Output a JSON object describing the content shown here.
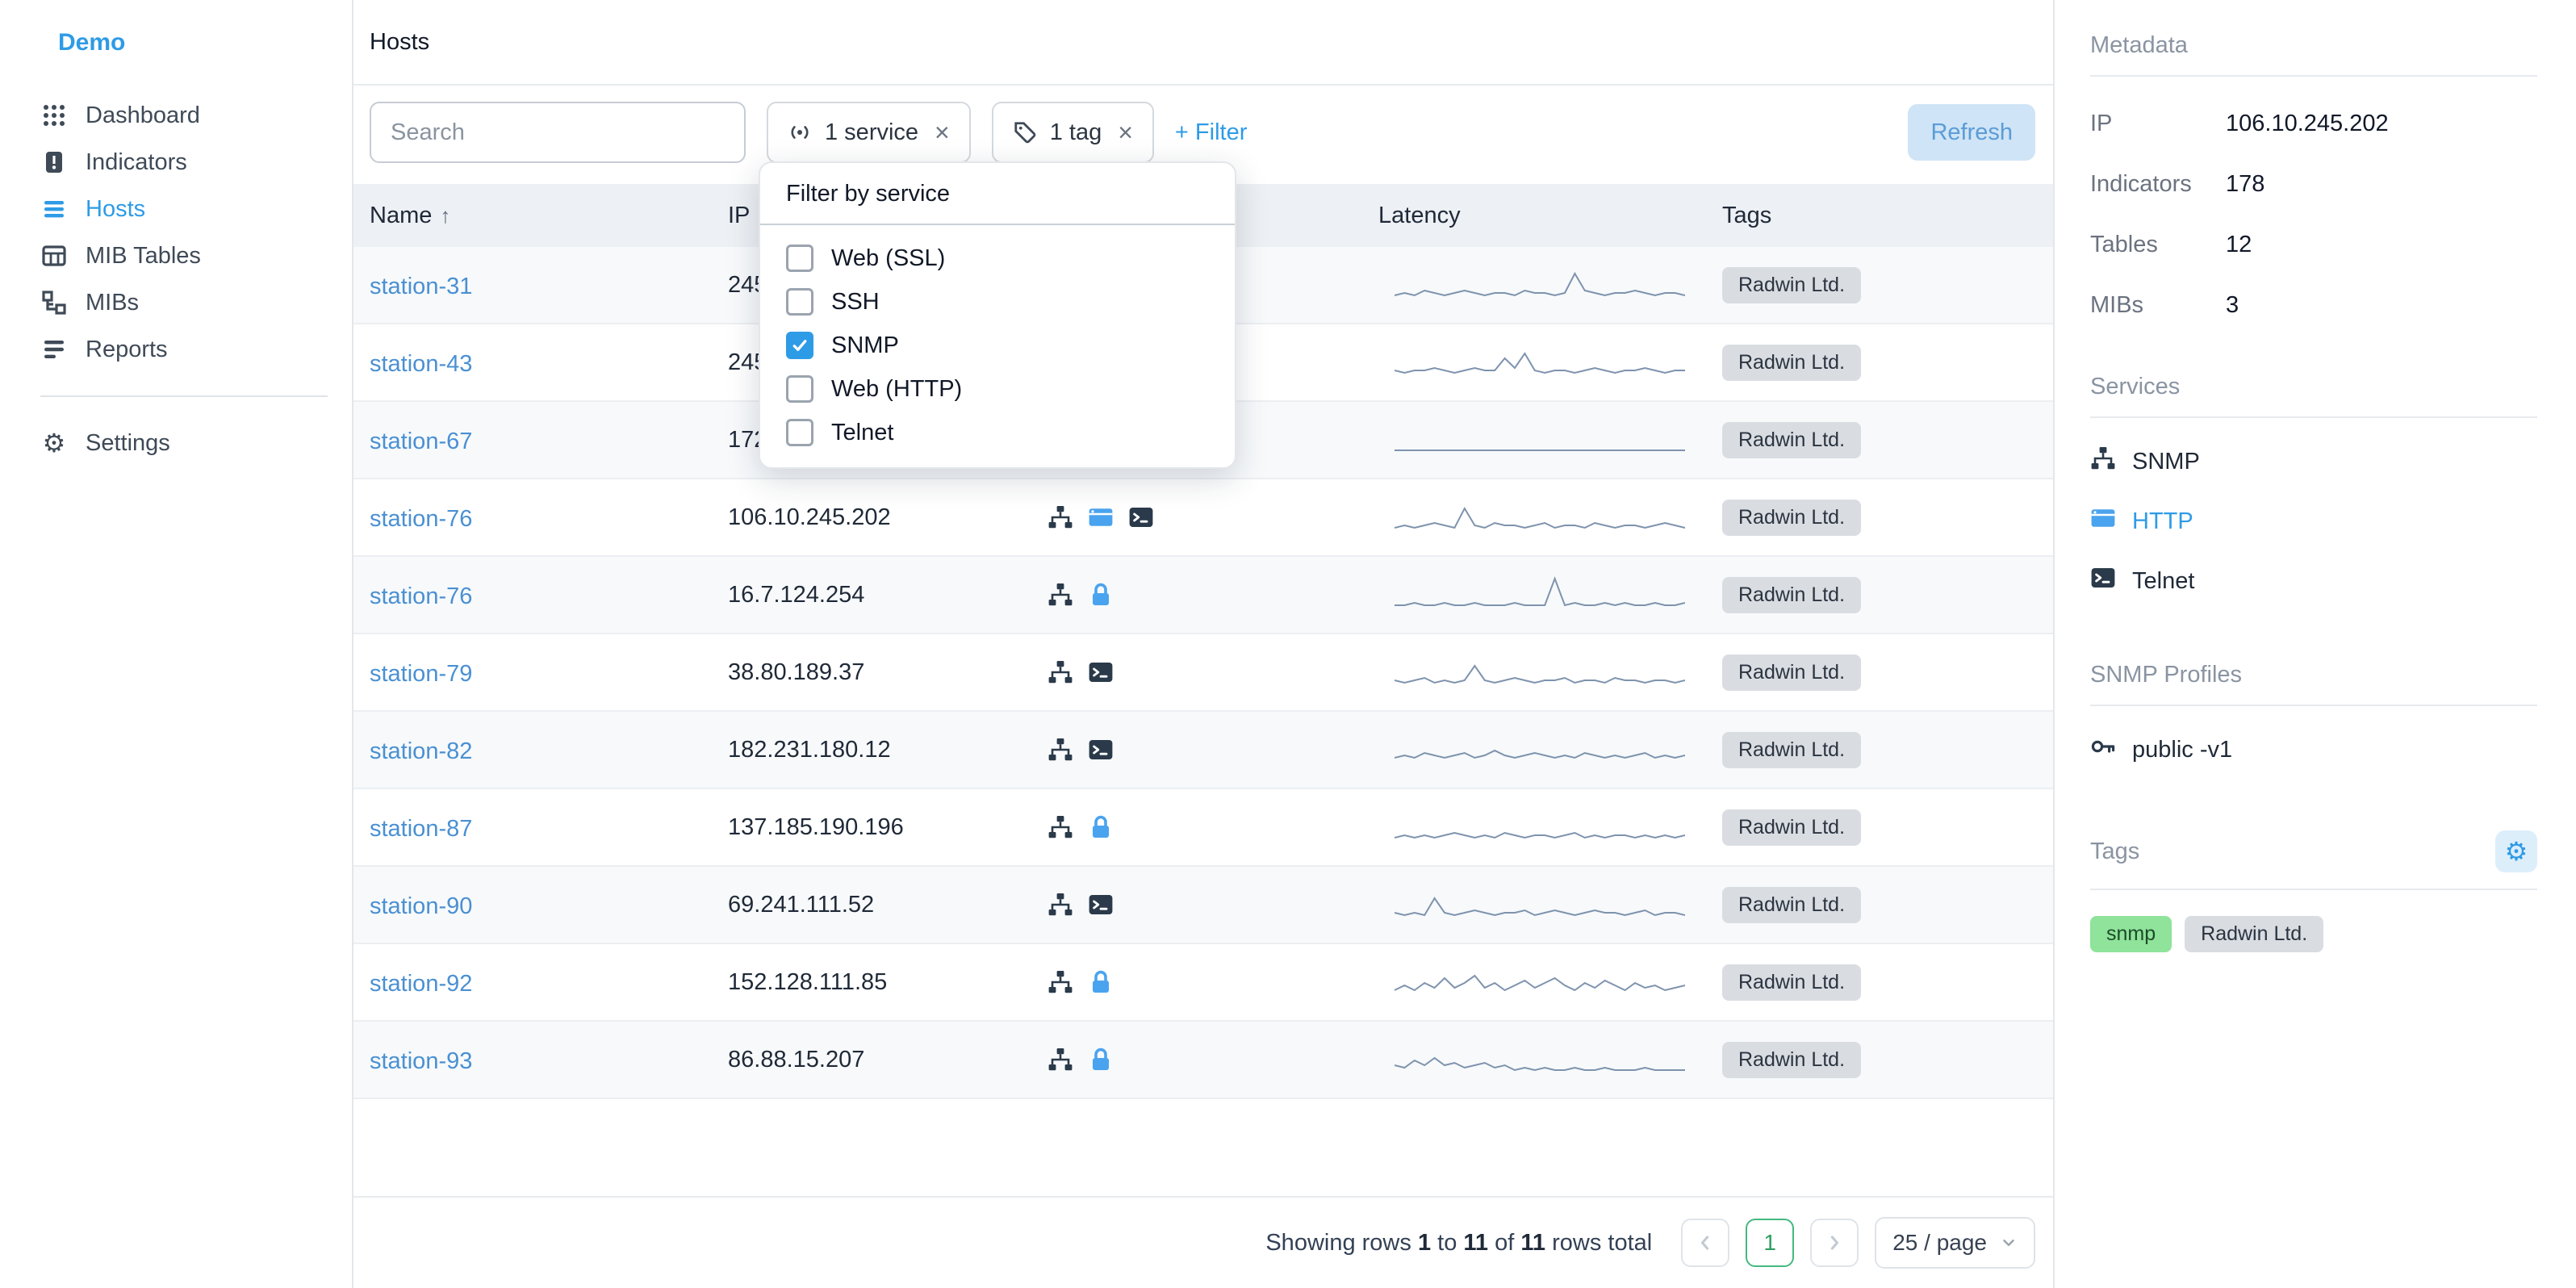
{
  "app": {
    "logo": "Demo"
  },
  "sidebar": {
    "items": [
      {
        "label": "Dashboard",
        "icon": "grid",
        "active": false
      },
      {
        "label": "Indicators",
        "icon": "alert",
        "active": false
      },
      {
        "label": "Hosts",
        "icon": "list",
        "active": true
      },
      {
        "label": "MIB Tables",
        "icon": "table",
        "active": false
      },
      {
        "label": "MIBs",
        "icon": "tree",
        "active": false
      },
      {
        "label": "Reports",
        "icon": "report",
        "active": false
      }
    ],
    "settings": {
      "label": "Settings",
      "icon": "gear",
      "active": false
    }
  },
  "header": {
    "title": "Hosts"
  },
  "toolbar": {
    "search_placeholder": "Search",
    "chips": [
      {
        "icon": "broadcast",
        "label": "1 service"
      },
      {
        "icon": "tag",
        "label": "1 tag"
      }
    ],
    "add_filter": "+ Filter",
    "refresh": "Refresh"
  },
  "filter_dropdown": {
    "title": "Filter by service",
    "options": [
      {
        "label": "Web (SSL)",
        "checked": false
      },
      {
        "label": "SSH",
        "checked": false
      },
      {
        "label": "SNMP",
        "checked": true
      },
      {
        "label": "Web (HTTP)",
        "checked": false
      },
      {
        "label": "Telnet",
        "checked": false
      }
    ]
  },
  "table": {
    "columns": [
      "Name",
      "IP",
      "",
      "Latency",
      "Tags"
    ],
    "sort_icon": "↑",
    "rows": [
      {
        "name": "station-31",
        "ip": "245",
        "services": [],
        "tag": "Radwin Ltd.",
        "spark": [
          3,
          4,
          3,
          5,
          4,
          3,
          4,
          5,
          4,
          3,
          4,
          4,
          3,
          5,
          4,
          4,
          3,
          4,
          12,
          5,
          4,
          3,
          4,
          4,
          5,
          4,
          3,
          4,
          4,
          3
        ]
      },
      {
        "name": "station-43",
        "ip": "245",
        "services": [],
        "tag": "Radwin Ltd.",
        "spark": [
          4,
          3,
          4,
          4,
          5,
          4,
          3,
          4,
          5,
          4,
          4,
          9,
          5,
          11,
          4,
          3,
          4,
          4,
          3,
          4,
          5,
          4,
          3,
          4,
          4,
          5,
          4,
          3,
          4,
          4
        ]
      },
      {
        "name": "station-67",
        "ip": "172",
        "services": [],
        "tag": "Radwin Ltd.",
        "spark": [
          3,
          3,
          3,
          3,
          3,
          3,
          3,
          3,
          3,
          3,
          3,
          3,
          3,
          3,
          3,
          3,
          3,
          3,
          3,
          3,
          3,
          3,
          3,
          3,
          3,
          3,
          3,
          3,
          3,
          3
        ]
      },
      {
        "name": "station-76",
        "ip": "106.10.245.202",
        "services": [
          "snmp",
          "http",
          "telnet"
        ],
        "tag": "Radwin Ltd.",
        "spark": [
          3,
          4,
          3,
          4,
          5,
          4,
          3,
          11,
          4,
          3,
          5,
          4,
          4,
          3,
          4,
          5,
          3,
          4,
          4,
          3,
          5,
          4,
          3,
          4,
          4,
          3,
          4,
          5,
          4,
          3
        ]
      },
      {
        "name": "station-76",
        "ip": "16.7.124.254",
        "services": [
          "snmp",
          "ssl"
        ],
        "tag": "Radwin Ltd.",
        "spark": [
          3,
          3,
          4,
          3,
          3,
          4,
          3,
          3,
          4,
          3,
          3,
          3,
          4,
          3,
          3,
          3,
          14,
          3,
          4,
          3,
          3,
          4,
          3,
          4,
          3,
          3,
          4,
          3,
          3,
          4
        ]
      },
      {
        "name": "station-79",
        "ip": "38.80.189.37",
        "services": [
          "snmp",
          "telnet"
        ],
        "tag": "Radwin Ltd.",
        "spark": [
          4,
          3,
          4,
          5,
          3,
          4,
          3,
          4,
          10,
          4,
          3,
          4,
          5,
          4,
          3,
          4,
          4,
          5,
          3,
          4,
          4,
          3,
          5,
          4,
          4,
          3,
          4,
          4,
          3,
          4
        ]
      },
      {
        "name": "station-82",
        "ip": "182.231.180.12",
        "services": [
          "snmp",
          "telnet"
        ],
        "tag": "Radwin Ltd.",
        "spark": [
          4,
          5,
          4,
          6,
          5,
          4,
          5,
          6,
          4,
          5,
          7,
          5,
          4,
          5,
          6,
          5,
          4,
          5,
          4,
          6,
          5,
          4,
          5,
          4,
          5,
          6,
          4,
          5,
          4,
          5
        ]
      },
      {
        "name": "station-87",
        "ip": "137.185.190.196",
        "services": [
          "snmp",
          "ssl"
        ],
        "tag": "Radwin Ltd.",
        "spark": [
          3,
          4,
          3,
          4,
          3,
          4,
          5,
          4,
          3,
          4,
          3,
          5,
          4,
          3,
          4,
          4,
          3,
          4,
          5,
          3,
          4,
          3,
          4,
          4,
          3,
          4,
          3,
          4,
          3,
          4
        ]
      },
      {
        "name": "station-90",
        "ip": "69.241.111.52",
        "services": [
          "snmp",
          "telnet"
        ],
        "tag": "Radwin Ltd.",
        "spark": [
          4,
          3,
          4,
          3,
          10,
          4,
          3,
          4,
          5,
          4,
          3,
          4,
          4,
          5,
          3,
          4,
          5,
          4,
          3,
          4,
          5,
          4,
          4,
          3,
          4,
          5,
          3,
          4,
          4,
          3
        ]
      },
      {
        "name": "station-92",
        "ip": "152.128.111.85",
        "services": [
          "snmp",
          "ssl"
        ],
        "tag": "Radwin Ltd.",
        "spark": [
          4,
          6,
          4,
          7,
          5,
          9,
          5,
          7,
          10,
          5,
          7,
          4,
          6,
          8,
          5,
          7,
          9,
          6,
          4,
          7,
          5,
          8,
          6,
          4,
          7,
          5,
          6,
          4,
          5,
          6
        ]
      },
      {
        "name": "station-93",
        "ip": "86.88.15.207",
        "services": [
          "snmp",
          "ssl"
        ],
        "tag": "Radwin Ltd.",
        "spark": [
          5,
          4,
          7,
          5,
          8,
          5,
          6,
          4,
          5,
          6,
          4,
          5,
          3,
          4,
          3,
          4,
          3,
          3,
          4,
          3,
          3,
          4,
          3,
          3,
          3,
          4,
          3,
          3,
          3,
          3
        ]
      }
    ]
  },
  "footer": {
    "showing": {
      "p1": "Showing rows",
      "n1": "1",
      "p2": "to",
      "n2": "11",
      "p3": "of",
      "n3": "11",
      "p4": "rows total"
    },
    "page": "1",
    "page_size": "25 / page"
  },
  "panel": {
    "metadata": {
      "title": "Metadata",
      "rows": [
        {
          "label": "IP",
          "value": "106.10.245.202"
        },
        {
          "label": "Indicators",
          "value": "178"
        },
        {
          "label": "Tables",
          "value": "12"
        },
        {
          "label": "MIBs",
          "value": "3"
        }
      ]
    },
    "services": {
      "title": "Services",
      "items": [
        {
          "icon": "snmp",
          "label": "SNMP",
          "accent": false
        },
        {
          "icon": "http",
          "label": "HTTP",
          "accent": true
        },
        {
          "icon": "telnet",
          "label": "Telnet",
          "accent": false
        }
      ]
    },
    "snmp_profiles": {
      "title": "SNMP Profiles",
      "items": [
        {
          "icon": "key",
          "label": "public -v1"
        }
      ]
    },
    "tags": {
      "title": "Tags",
      "items": [
        {
          "label": "snmp",
          "color": "green"
        },
        {
          "label": "Radwin Ltd.",
          "color": "gray"
        }
      ]
    }
  },
  "colors": {
    "accent": "#2e9be6",
    "link": "#4a90d2",
    "green_badge": "#8fe39b",
    "refresh_bg": "#cfe4f6"
  }
}
